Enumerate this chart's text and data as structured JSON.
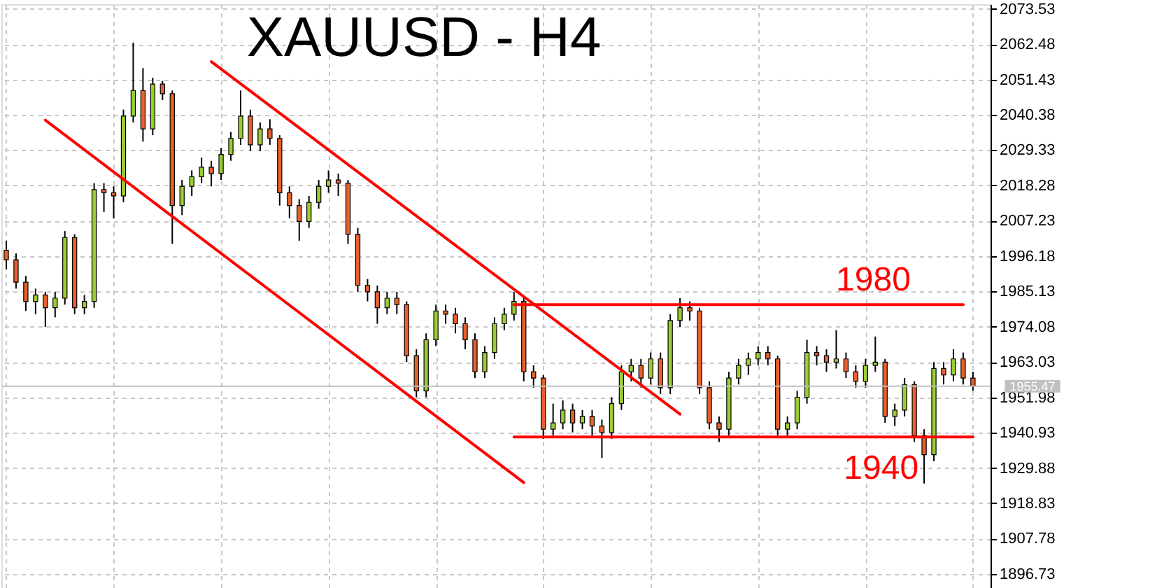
{
  "chart_data": {
    "type": "candlestick",
    "title": "XAUUSD - H4",
    "categories": [
      null,
      null,
      null,
      null,
      null,
      null,
      null,
      null,
      null,
      null,
      null,
      null,
      null,
      null,
      null,
      null,
      null,
      null,
      null,
      null,
      null,
      null,
      null,
      null,
      null,
      null,
      null,
      null,
      null,
      null,
      null,
      null,
      null,
      null,
      null,
      null,
      null,
      null,
      null,
      null,
      null,
      null,
      null,
      null,
      null,
      null,
      null,
      null,
      null,
      null,
      null,
      null,
      null,
      null,
      null,
      null,
      null,
      null,
      null,
      null,
      null,
      null,
      null,
      null,
      null,
      null,
      null,
      null,
      null,
      null,
      null,
      null,
      null,
      null,
      null,
      null,
      null,
      null,
      null,
      null,
      null,
      null,
      null,
      null,
      null,
      null,
      null,
      null,
      null,
      null,
      null,
      null,
      null,
      null,
      null,
      null,
      null,
      null,
      null,
      null
    ],
    "ohlc": [
      [
        1998,
        2001,
        1992,
        1995
      ],
      [
        1995,
        1997,
        1986,
        1988
      ],
      [
        1988,
        1990,
        1979,
        1982
      ],
      [
        1982,
        1986,
        1978,
        1984
      ],
      [
        1984,
        1985,
        1974,
        1980
      ],
      [
        1980,
        1985,
        1977,
        1983
      ],
      [
        1983,
        2004,
        1981,
        2002
      ],
      [
        2002,
        2003,
        1978,
        1980
      ],
      [
        1980,
        1984,
        1978,
        1982
      ],
      [
        1982,
        2019,
        1980,
        2017
      ],
      [
        2017,
        2019,
        2010,
        2016
      ],
      [
        2016,
        2018,
        2008,
        2015
      ],
      [
        2015,
        2042,
        2013,
        2040
      ],
      [
        2040,
        2063,
        2038,
        2048
      ],
      [
        2048,
        2055,
        2032,
        2036
      ],
      [
        2036,
        2052,
        2034,
        2050
      ],
      [
        2050,
        2051,
        2045,
        2047
      ],
      [
        2047,
        2048,
        2000,
        2012
      ],
      [
        2012,
        2020,
        2009,
        2018
      ],
      [
        2018,
        2023,
        2015,
        2021
      ],
      [
        2021,
        2027,
        2019,
        2024
      ],
      [
        2024,
        2026,
        2018,
        2022
      ],
      [
        2022,
        2030,
        2020,
        2028
      ],
      [
        2028,
        2035,
        2026,
        2033
      ],
      [
        2033,
        2048,
        2031,
        2040
      ],
      [
        2040,
        2042,
        2029,
        2031
      ],
      [
        2031,
        2038,
        2029,
        2036
      ],
      [
        2036,
        2039,
        2031,
        2033
      ],
      [
        2033,
        2034,
        2012,
        2016
      ],
      [
        2016,
        2018,
        2008,
        2012
      ],
      [
        2012,
        2014,
        2001,
        2007
      ],
      [
        2007,
        2015,
        2005,
        2013
      ],
      [
        2013,
        2020,
        2011,
        2018
      ],
      [
        2018,
        2023,
        2016,
        2020
      ],
      [
        2020,
        2022,
        2015,
        2019
      ],
      [
        2019,
        2020,
        2000,
        2003
      ],
      [
        2003,
        2005,
        1985,
        1987
      ],
      [
        1987,
        1989,
        1982,
        1985
      ],
      [
        1985,
        1987,
        1975,
        1980
      ],
      [
        1980,
        1985,
        1978,
        1983
      ],
      [
        1983,
        1985,
        1978,
        1981
      ],
      [
        1981,
        1982,
        1963,
        1965
      ],
      [
        1965,
        1967,
        1952,
        1954
      ],
      [
        1954,
        1972,
        1952,
        1970
      ],
      [
        1970,
        1981,
        1968,
        1979
      ],
      [
        1979,
        1981,
        1975,
        1978
      ],
      [
        1978,
        1980,
        1972,
        1975
      ],
      [
        1975,
        1977,
        1967,
        1970
      ],
      [
        1970,
        1972,
        1958,
        1960
      ],
      [
        1960,
        1968,
        1958,
        1966
      ],
      [
        1966,
        1977,
        1964,
        1975
      ],
      [
        1975,
        1980,
        1973,
        1978
      ],
      [
        1978,
        1985,
        1976,
        1982
      ],
      [
        1982,
        1983,
        1957,
        1960
      ],
      [
        1960,
        1962,
        1955,
        1958
      ],
      [
        1958,
        1959,
        1939,
        1942
      ],
      [
        1942,
        1950,
        1940,
        1944
      ],
      [
        1944,
        1951,
        1942,
        1948
      ],
      [
        1948,
        1950,
        1941,
        1944
      ],
      [
        1944,
        1948,
        1942,
        1946
      ],
      [
        1946,
        1948,
        1940,
        1943
      ],
      [
        1943,
        1945,
        1933,
        1941
      ],
      [
        1941,
        1952,
        1939,
        1950
      ],
      [
        1950,
        1962,
        1948,
        1960
      ],
      [
        1960,
        1964,
        1957,
        1962
      ],
      [
        1962,
        1964,
        1955,
        1958
      ],
      [
        1958,
        1966,
        1956,
        1964
      ],
      [
        1964,
        1966,
        1953,
        1955
      ],
      [
        1955,
        1978,
        1953,
        1976
      ],
      [
        1976,
        1983,
        1974,
        1980
      ],
      [
        1980,
        1982,
        1976,
        1979
      ],
      [
        1979,
        1980,
        1953,
        1955
      ],
      [
        1955,
        1957,
        1942,
        1944
      ],
      [
        1944,
        1946,
        1938,
        1942
      ],
      [
        1942,
        1960,
        1940,
        1958
      ],
      [
        1958,
        1964,
        1956,
        1962
      ],
      [
        1962,
        1966,
        1959,
        1964
      ],
      [
        1964,
        1968,
        1962,
        1966
      ],
      [
        1966,
        1968,
        1962,
        1964
      ],
      [
        1964,
        1965,
        1940,
        1942
      ],
      [
        1942,
        1946,
        1940,
        1944
      ],
      [
        1944,
        1954,
        1942,
        1952
      ],
      [
        1952,
        1970,
        1950,
        1966
      ],
      [
        1966,
        1968,
        1962,
        1965
      ],
      [
        1965,
        1967,
        1960,
        1963
      ],
      [
        1963,
        1973,
        1961,
        1964
      ],
      [
        1964,
        1966,
        1958,
        1960
      ],
      [
        1960,
        1962,
        1955,
        1957
      ],
      [
        1957,
        1964,
        1955,
        1962
      ],
      [
        1962,
        1971,
        1960,
        1963
      ],
      [
        1963,
        1964,
        1944,
        1946
      ],
      [
        1946,
        1950,
        1943,
        1948
      ],
      [
        1948,
        1958,
        1946,
        1956
      ],
      [
        1956,
        1957,
        1938,
        1940
      ],
      [
        1940,
        1942,
        1925,
        1934
      ],
      [
        1934,
        1963,
        1932,
        1961
      ],
      [
        1961,
        1963,
        1956,
        1959
      ],
      [
        1959,
        1967,
        1957,
        1964
      ],
      [
        1964,
        1966,
        1956,
        1958
      ],
      [
        1958,
        1960,
        1954,
        1955.47
      ]
    ],
    "colors": [
      "#e8602c",
      "#e8602c",
      "#e8602c",
      "#9acd32",
      "#e8602c",
      "#9acd32",
      "#9acd32",
      "#e8602c",
      "#9acd32",
      "#9acd32",
      "#e8602c",
      "#e8602c",
      "#9acd32",
      "#9acd32",
      "#e8602c",
      "#9acd32",
      "#e8602c",
      "#e8602c",
      "#9acd32",
      "#9acd32",
      "#9acd32",
      "#e8602c",
      "#9acd32",
      "#9acd32",
      "#9acd32",
      "#e8602c",
      "#9acd32",
      "#e8602c",
      "#e8602c",
      "#e8602c",
      "#e8602c",
      "#9acd32",
      "#9acd32",
      "#9acd32",
      "#e8602c",
      "#e8602c",
      "#e8602c",
      "#e8602c",
      "#e8602c",
      "#9acd32",
      "#e8602c",
      "#e8602c",
      "#e8602c",
      "#9acd32",
      "#9acd32",
      "#e8602c",
      "#e8602c",
      "#e8602c",
      "#e8602c",
      "#9acd32",
      "#9acd32",
      "#9acd32",
      "#9acd32",
      "#e8602c",
      "#e8602c",
      "#e8602c",
      "#9acd32",
      "#9acd32",
      "#e8602c",
      "#9acd32",
      "#e8602c",
      "#e8602c",
      "#9acd32",
      "#9acd32",
      "#9acd32",
      "#e8602c",
      "#9acd32",
      "#e8602c",
      "#9acd32",
      "#9acd32",
      "#e8602c",
      "#e8602c",
      "#e8602c",
      "#e8602c",
      "#9acd32",
      "#9acd32",
      "#9acd32",
      "#9acd32",
      "#e8602c",
      "#e8602c",
      "#9acd32",
      "#9acd32",
      "#9acd32",
      "#e8602c",
      "#e8602c",
      "#9acd32",
      "#e8602c",
      "#e8602c",
      "#9acd32",
      "#9acd32",
      "#e8602c",
      "#9acd32",
      "#9acd32",
      "#e8602c",
      "#e8602c",
      "#9acd32",
      "#e8602c",
      "#9acd32",
      "#e8602c",
      "#e8602c"
    ],
    "series": [
      {
        "type": "line",
        "color": "#ff0000",
        "values": [
          null,
          null,
          null,
          null,
          2038.7,
          null,
          null,
          null,
          null,
          null,
          null,
          null,
          null,
          null,
          null,
          null,
          null,
          null,
          null,
          null,
          null,
          null,
          null,
          null,
          null,
          null,
          null,
          null,
          null,
          null,
          null,
          null,
          null,
          null,
          null,
          null,
          null,
          null,
          null,
          null,
          null,
          null,
          null,
          null,
          null,
          null,
          null,
          null,
          null,
          null,
          null,
          null,
          null,
          1925.3,
          null,
          null,
          null,
          null,
          null,
          null,
          null,
          null,
          null,
          null,
          null,
          null,
          null,
          null,
          null,
          null,
          null,
          null,
          null,
          null,
          null,
          null,
          null,
          null,
          null,
          null,
          null,
          null,
          null,
          null,
          null,
          null,
          null,
          null,
          null,
          null,
          null,
          null,
          null,
          null,
          null,
          null,
          null,
          null,
          null,
          null
        ]
      },
      {
        "type": "line",
        "color": "#ff0000",
        "values": [
          null,
          null,
          null,
          null,
          null,
          null,
          null,
          null,
          null,
          null,
          null,
          null,
          null,
          null,
          null,
          null,
          null,
          null,
          null,
          null,
          null,
          2057.0,
          null,
          null,
          null,
          null,
          null,
          null,
          null,
          null,
          null,
          null,
          null,
          null,
          null,
          null,
          null,
          null,
          null,
          null,
          null,
          null,
          null,
          null,
          null,
          null,
          null,
          null,
          null,
          null,
          null,
          null,
          null,
          null,
          null,
          null,
          null,
          null,
          null,
          null,
          null,
          null,
          null,
          null,
          null,
          null,
          null,
          null,
          null,
          1946.7,
          null,
          null,
          null,
          null,
          null,
          null,
          null,
          null,
          null,
          null,
          null,
          null,
          null,
          null,
          null,
          null,
          null,
          null,
          null,
          null,
          null,
          null,
          null,
          null,
          null,
          null,
          null,
          null,
          null,
          null
        ]
      },
      {
        "type": "line",
        "name": "1980",
        "color": "#ff0000",
        "values": [
          null,
          null,
          null,
          null,
          null,
          null,
          null,
          null,
          null,
          null,
          null,
          null,
          null,
          null,
          null,
          null,
          null,
          null,
          null,
          null,
          null,
          null,
          null,
          null,
          null,
          null,
          null,
          null,
          null,
          null,
          null,
          null,
          null,
          null,
          null,
          null,
          null,
          null,
          null,
          null,
          null,
          null,
          null,
          null,
          null,
          null,
          null,
          null,
          null,
          null,
          null,
          null,
          1981,
          null,
          null,
          null,
          null,
          null,
          null,
          null,
          null,
          null,
          null,
          null,
          null,
          null,
          null,
          null,
          null,
          null,
          null,
          null,
          null,
          null,
          null,
          null,
          null,
          null,
          null,
          null,
          null,
          null,
          null,
          null,
          null,
          null,
          null,
          null,
          null,
          null,
          null,
          null,
          null,
          null,
          null,
          null,
          null,
          null,
          1981,
          null
        ]
      },
      {
        "type": "line",
        "name": "1940",
        "color": "#ff0000",
        "values": [
          null,
          null,
          null,
          null,
          null,
          null,
          null,
          null,
          null,
          null,
          null,
          null,
          null,
          null,
          null,
          null,
          null,
          null,
          null,
          null,
          null,
          null,
          null,
          null,
          null,
          null,
          null,
          null,
          null,
          null,
          null,
          null,
          null,
          null,
          null,
          null,
          null,
          null,
          null,
          null,
          null,
          null,
          null,
          null,
          null,
          null,
          null,
          null,
          null,
          null,
          null,
          null,
          1939.6,
          null,
          null,
          null,
          null,
          null,
          null,
          null,
          null,
          null,
          null,
          null,
          null,
          null,
          null,
          null,
          null,
          null,
          null,
          null,
          null,
          null,
          null,
          null,
          null,
          null,
          null,
          null,
          null,
          null,
          null,
          null,
          null,
          null,
          null,
          null,
          null,
          null,
          null,
          null,
          null,
          null,
          null,
          null,
          null,
          null,
          null,
          1939.6
        ]
      }
    ],
    "ref_lines": [
      {
        "axis": "y",
        "value": 1955.47,
        "label": "1955.47",
        "color": "#c0c0c0"
      }
    ],
    "ylim": [
      1891,
      2075
    ],
    "yticks": [
      1896.73,
      1907.78,
      1918.83,
      1929.88,
      1940.93,
      1951.98,
      1963.03,
      1974.08,
      1985.13,
      1996.18,
      2007.23,
      2018.28,
      2029.33,
      2040.38,
      2051.43,
      2062.48,
      2073.53
    ],
    "grid": true,
    "tick_labels": "y",
    "line_style": "solid",
    "marker": "none"
  }
}
